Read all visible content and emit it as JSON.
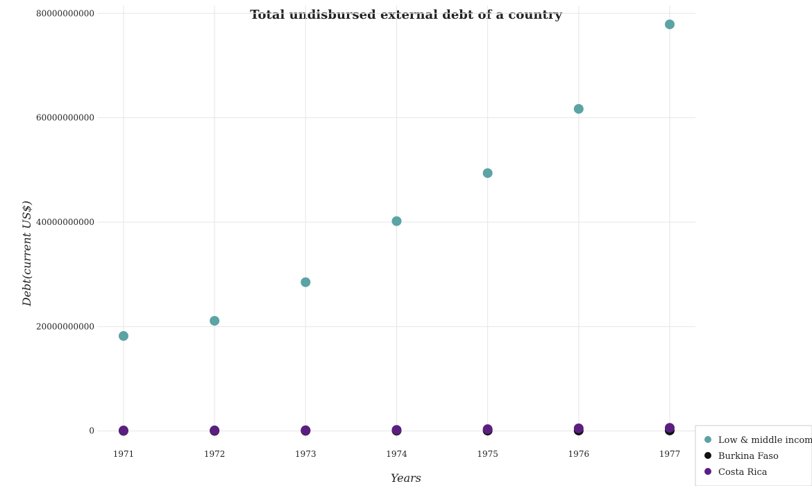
{
  "chart_data": {
    "type": "scatter",
    "title": "Total undisbursed external debt of a country",
    "xlabel": "Years",
    "ylabel": "Debt(current US$)",
    "categories": [
      "1971",
      "1972",
      "1973",
      "1974",
      "1975",
      "1976",
      "1977"
    ],
    "y_ticks": [
      0,
      20000000000,
      40000000000,
      60000000000,
      80000000000
    ],
    "y_tick_labels": [
      "0",
      "20000000000",
      "40000000000",
      "60000000000",
      "80000000000"
    ],
    "ylim": [
      -1500000000,
      81500000000
    ],
    "grid": true,
    "legend_position": "bottom-right",
    "series": [
      {
        "name": "Low & middle income",
        "color": "#5ba3a4",
        "values": [
          18200000000,
          21100000000,
          28500000000,
          40200000000,
          49400000000,
          61700000000,
          77900000000
        ]
      },
      {
        "name": "Burkina Faso",
        "color": "#111111",
        "values": [
          25000000,
          30000000,
          40000000,
          55000000,
          70000000,
          85000000,
          100000000
        ]
      },
      {
        "name": "Costa Rica",
        "color": "#5a1f80",
        "values": [
          90000000,
          110000000,
          130000000,
          200000000,
          340000000,
          500000000,
          600000000
        ]
      }
    ]
  }
}
